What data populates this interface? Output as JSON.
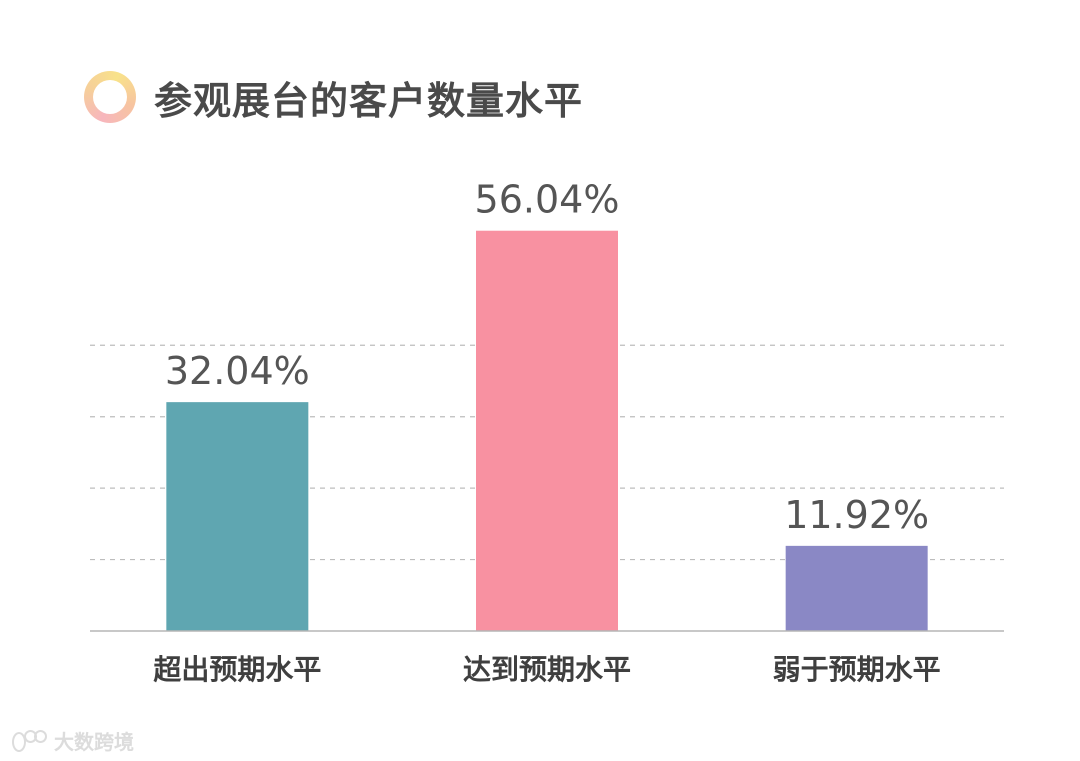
{
  "chart_data": {
    "type": "bar",
    "title": "参观展台的客户数量水平",
    "categories": [
      "超出预期水平",
      "达到预期水平",
      "弱于预期水平"
    ],
    "values": [
      32.04,
      56.04,
      11.92
    ],
    "value_labels": [
      "32.04%",
      "56.04%",
      "11.92%"
    ],
    "ylim": [
      0,
      70
    ],
    "grid": "dashed horizontal",
    "colors": [
      "#5fa6b1",
      "#f891a1",
      "#8a88c5"
    ]
  },
  "watermark": {
    "text": "大数跨境"
  }
}
